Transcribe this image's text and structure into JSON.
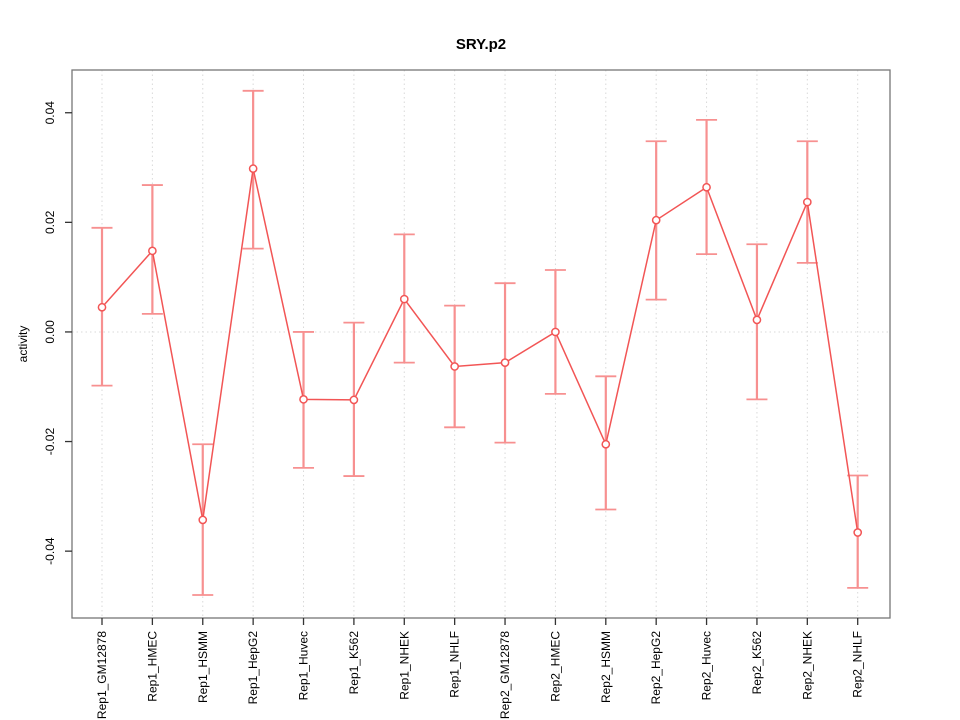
{
  "chart_data": {
    "type": "line",
    "title": "SRY.p2",
    "ylabel": "activity",
    "categories": [
      "Rep1_GM12878",
      "Rep1_HMEC",
      "Rep1_HSMM",
      "Rep1_HepG2",
      "Rep1_Huvec",
      "Rep1_K562",
      "Rep1_NHEK",
      "Rep1_NHLF",
      "Rep2_GM12878",
      "Rep2_HMEC",
      "Rep2_HSMM",
      "Rep2_HepG2",
      "Rep2_Huvec",
      "Rep2_K562",
      "Rep2_NHEK",
      "Rep2_NHLF"
    ],
    "series": [
      {
        "name": "activity",
        "values": [
          0.0045,
          0.0148,
          -0.0343,
          0.0298,
          -0.0123,
          -0.0124,
          0.006,
          -0.0063,
          -0.0056,
          0.0,
          -0.0205,
          0.0204,
          0.0264,
          0.0022,
          0.0237,
          -0.0366
        ],
        "upper": [
          0.019,
          0.0268,
          -0.0205,
          0.044,
          0.0,
          0.0017,
          0.0178,
          0.0048,
          0.0089,
          0.0113,
          -0.0081,
          0.0348,
          0.0387,
          0.016,
          0.0348,
          -0.0262
        ],
        "lower": [
          -0.0098,
          0.0033,
          -0.048,
          0.0152,
          -0.0248,
          -0.0263,
          -0.0056,
          -0.0174,
          -0.0202,
          -0.0113,
          -0.0324,
          0.0059,
          0.0142,
          -0.0123,
          0.0126,
          -0.0467
        ]
      }
    ],
    "y_ticks": [
      0.04,
      0.02,
      0.0,
      -0.02,
      -0.04
    ],
    "ylim": [
      -0.0522,
      0.0478
    ],
    "grid": {
      "vertical_at_categories": true,
      "horizontal_at_zero": true
    },
    "legend": "none",
    "colors": {
      "series": "#f25555",
      "errorbar": "#f79090",
      "point_fill": "#ffffff",
      "grid": "#d9d9d9",
      "axis": "#777777",
      "tick": "#333333",
      "text": "#000000"
    }
  }
}
